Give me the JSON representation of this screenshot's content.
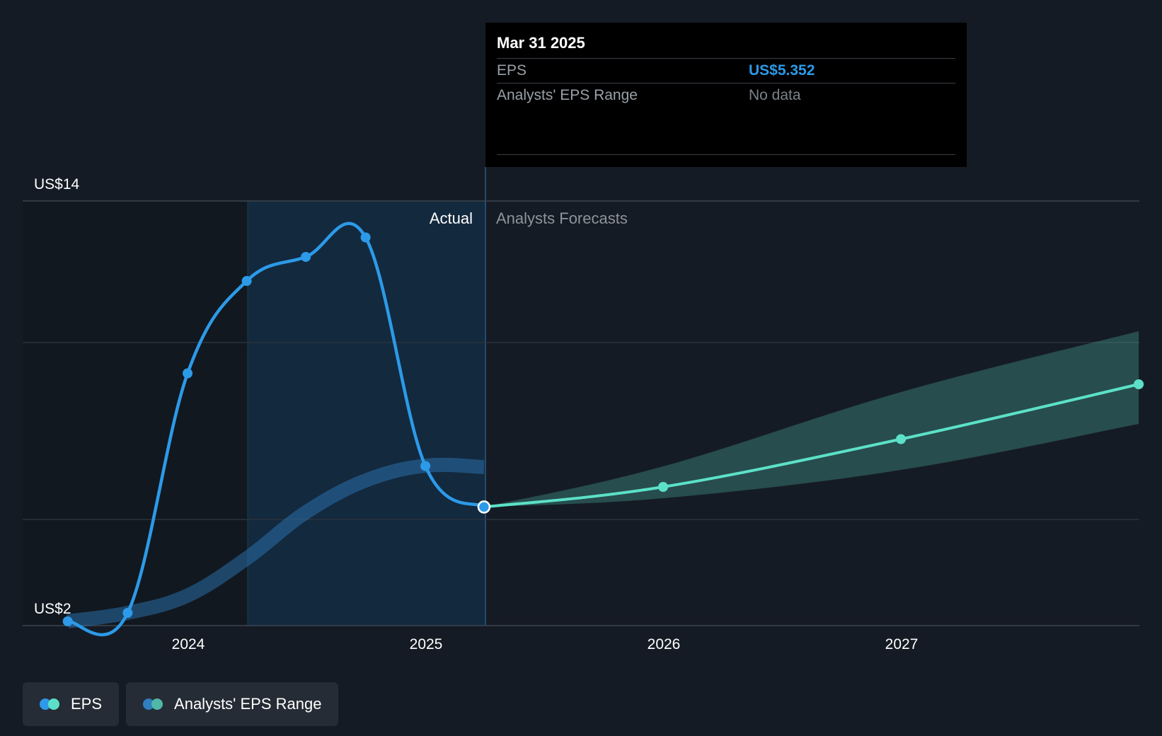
{
  "chart_data": {
    "type": "line",
    "y_axis": {
      "top_label": "US$14",
      "bottom_label": "US$2",
      "ylim": [
        2,
        14
      ]
    },
    "x_axis": {
      "ticks": [
        "2024",
        "2025",
        "2026",
        "2027"
      ]
    },
    "sections": {
      "actual_label": "Actual",
      "forecast_label": "Analysts Forecasts"
    },
    "series": [
      {
        "name": "EPS",
        "color": "#2c9ae8",
        "x": [
          "2023-06-30",
          "2023-09-30",
          "2023-12-31",
          "2024-03-31",
          "2024-06-30",
          "2024-09-30",
          "2024-12-31",
          "2025-03-31"
        ],
        "values": [
          2.12,
          2.36,
          9.13,
          11.74,
          12.42,
          12.97,
          6.51,
          5.352
        ]
      },
      {
        "name": "EPS",
        "color": "#5ce1c8",
        "x": [
          "2025-03-31",
          "2025-12-31",
          "2026-12-31",
          "2027-12-31"
        ],
        "values": [
          5.352,
          5.92,
          7.27,
          8.82
        ]
      },
      {
        "name": "Analysts' EPS Range",
        "color": "#2f7fc1",
        "x": [
          "2023-06-30",
          "2023-09-30",
          "2023-12-31",
          "2024-03-31",
          "2024-06-30",
          "2024-09-30",
          "2024-12-31",
          "2025-03-31"
        ],
        "values": [
          2.12,
          2.36,
          2.85,
          3.9,
          5.2,
          6.1,
          6.52,
          6.48
        ]
      },
      {
        "name": "Analysts' EPS Range",
        "color": "#4fb8a8",
        "x": [
          "2025-03-31",
          "2025-12-31",
          "2026-12-31",
          "2027-12-31"
        ],
        "low": [
          5.352,
          5.6,
          6.4,
          7.7
        ],
        "high": [
          5.352,
          6.5,
          8.6,
          10.32
        ]
      }
    ]
  },
  "tooltip": {
    "date": "Mar 31 2025",
    "rows": [
      {
        "label": "EPS",
        "value": "US$5.352"
      },
      {
        "label": "Analysts' EPS Range",
        "value": "No data"
      }
    ]
  },
  "legend": {
    "items": [
      {
        "label": "EPS",
        "colors": [
          "#2c9ae8",
          "#5ce1c8"
        ]
      },
      {
        "label": "Analysts' EPS Range",
        "colors": [
          "#2f7fc1",
          "#4fb8a8"
        ]
      }
    ]
  },
  "colors": {
    "background": "#151b24",
    "actual_shade": "#132a40",
    "eps_actual": "#2c9ae8",
    "eps_forecast": "#5ce1c8",
    "range_forecast": "#4fb8a8"
  }
}
